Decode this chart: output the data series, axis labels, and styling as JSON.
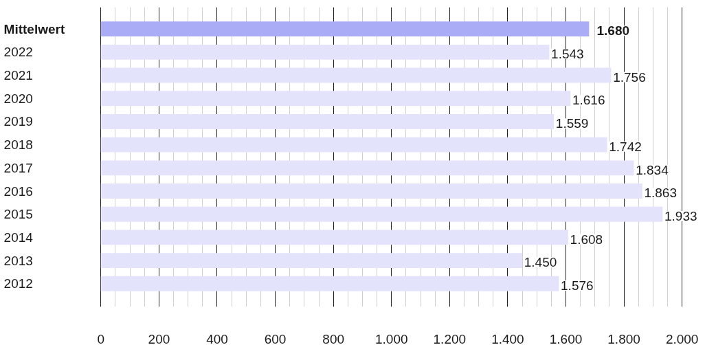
{
  "chart_data": {
    "type": "bar",
    "orientation": "horizontal",
    "categories": [
      "Mittelwert",
      "2022",
      "2021",
      "2020",
      "2019",
      "2018",
      "2017",
      "2016",
      "2015",
      "2014",
      "2013",
      "2012"
    ],
    "values": [
      1680,
      1543,
      1756,
      1616,
      1559,
      1742,
      1834,
      1863,
      1933,
      1608,
      1450,
      1576
    ],
    "colors": [
      "#abacf6",
      "#e3e3fb",
      "#e3e3fb",
      "#e3e3fb",
      "#e3e3fb",
      "#e3e3fb",
      "#e3e3fb",
      "#e3e3fb",
      "#e3e3fb",
      "#e3e3fb",
      "#e3e3fb",
      "#e3e3fb"
    ],
    "value_labels": [
      "1.680",
      "1.543",
      "1.756",
      "1.616",
      "1.559",
      "1.742",
      "1.834",
      "1.863",
      "1.933",
      "1.608",
      "1.450",
      "1.576"
    ],
    "xlim": [
      0,
      2000
    ],
    "xticks": [
      0,
      {
        "value": 50,
        "label": null
      },
      {
        "value": 100,
        "label": null
      },
      {
        "value": 150,
        "label": null
      },
      200,
      {
        "value": 250,
        "label": null
      },
      {
        "value": 300,
        "label": null
      },
      {
        "value": 350,
        "label": null
      },
      400,
      {
        "value": 450,
        "label": null
      },
      {
        "value": 500,
        "label": null
      },
      {
        "value": 550,
        "label": null
      },
      600,
      {
        "value": 650,
        "label": null
      },
      {
        "value": 700,
        "label": null
      },
      {
        "value": 750,
        "label": null
      },
      800,
      {
        "value": 850,
        "label": null
      },
      {
        "value": 900,
        "label": null
      },
      {
        "value": 950,
        "label": null
      },
      {
        "value": 1000,
        "label": "1.000"
      },
      {
        "value": 1050,
        "label": null
      },
      {
        "value": 1100,
        "label": null
      },
      {
        "value": 1150,
        "label": null
      },
      {
        "value": 1200,
        "label": "1.200"
      },
      {
        "value": 1250,
        "label": null
      },
      {
        "value": 1300,
        "label": null
      },
      {
        "value": 1350,
        "label": null
      },
      {
        "value": 1400,
        "label": "1.400"
      },
      {
        "value": 1450,
        "label": null
      },
      {
        "value": 1500,
        "label": null
      },
      {
        "value": 1550,
        "label": null
      },
      {
        "value": 1600,
        "label": "1.600"
      },
      {
        "value": 1650,
        "label": null
      },
      {
        "value": 1700,
        "label": null
      },
      {
        "value": 1750,
        "label": null
      },
      {
        "value": 1800,
        "label": "1.800"
      },
      {
        "value": 1850,
        "label": null
      },
      {
        "value": 1900,
        "label": null
      },
      {
        "value": 1950,
        "label": null
      },
      {
        "value": 2000,
        "label": "2.000"
      }
    ],
    "grid": "x"
  }
}
